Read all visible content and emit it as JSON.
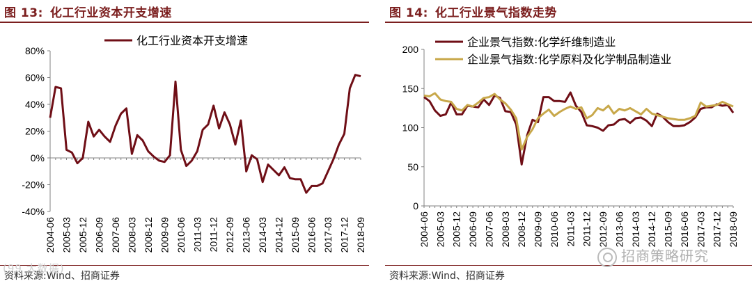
{
  "left": {
    "fig_label": "图 13:",
    "fig_title": "化工行业资本开支增速",
    "source": "资料来源:Wind、招商证券"
  },
  "right": {
    "fig_label": "图 14:",
    "fig_title": "化工行业景气指数走势",
    "source": "资料来源:Wind、招商证券"
  },
  "watermarks": {
    "left": "(99 大数据)",
    "right": "招商策略研究"
  },
  "colors": {
    "title": "#7b1e1e",
    "series_dark": "#6f0e16",
    "series_gold": "#c8a84a",
    "axis": "#808080"
  },
  "chart_data": [
    {
      "type": "line",
      "yticks": [
        "-40%",
        "-20%",
        "0%",
        "20%",
        "40%",
        "60%",
        "80%"
      ],
      "ylim": [
        -40,
        80
      ],
      "x_tick_labels": [
        "2004-06",
        "2005-03",
        "2005-12",
        "2006-09",
        "2007-06",
        "2008-03",
        "2008-12",
        "2009-09",
        "2010-06",
        "2011-03",
        "2011-12",
        "2012-09",
        "2013-06",
        "2014-03",
        "2014-12",
        "2015-09",
        "2016-06",
        "2017-03",
        "2017-12",
        "2018-09"
      ],
      "x_range": [
        2004.417,
        2018.667
      ],
      "legend_position": "top-center",
      "series": [
        {
          "name": "化工行业资本开支增速",
          "color": "#6f0e16",
          "points": [
            [
              2004.417,
              30
            ],
            [
              2004.667,
              53
            ],
            [
              2004.917,
              52
            ],
            [
              2005.167,
              6
            ],
            [
              2005.417,
              4
            ],
            [
              2005.667,
              -4
            ],
            [
              2005.917,
              0
            ],
            [
              2006.167,
              27
            ],
            [
              2006.417,
              16
            ],
            [
              2006.667,
              21
            ],
            [
              2006.917,
              16
            ],
            [
              2007.167,
              12
            ],
            [
              2007.417,
              24
            ],
            [
              2007.667,
              33
            ],
            [
              2007.917,
              37
            ],
            [
              2008.167,
              3
            ],
            [
              2008.417,
              17
            ],
            [
              2008.667,
              13
            ],
            [
              2008.917,
              5
            ],
            [
              2009.167,
              1
            ],
            [
              2009.417,
              -2
            ],
            [
              2009.667,
              -3
            ],
            [
              2009.917,
              2
            ],
            [
              2010.167,
              57
            ],
            [
              2010.417,
              6
            ],
            [
              2010.667,
              -6
            ],
            [
              2010.917,
              -2
            ],
            [
              2011.167,
              5
            ],
            [
              2011.417,
              21
            ],
            [
              2011.667,
              25
            ],
            [
              2011.917,
              39
            ],
            [
              2012.167,
              22
            ],
            [
              2012.417,
              34
            ],
            [
              2012.667,
              25
            ],
            [
              2012.917,
              10
            ],
            [
              2013.167,
              28
            ],
            [
              2013.417,
              -10
            ],
            [
              2013.667,
              2
            ],
            [
              2013.917,
              -1
            ],
            [
              2014.167,
              -18
            ],
            [
              2014.417,
              -5
            ],
            [
              2014.667,
              -9
            ],
            [
              2014.917,
              -13
            ],
            [
              2015.167,
              -7
            ],
            [
              2015.417,
              -15
            ],
            [
              2015.667,
              -16
            ],
            [
              2015.917,
              -16
            ],
            [
              2016.167,
              -26
            ],
            [
              2016.417,
              -21
            ],
            [
              2016.667,
              -21
            ],
            [
              2016.917,
              -19
            ],
            [
              2017.167,
              -10
            ],
            [
              2017.417,
              -1
            ],
            [
              2017.667,
              10
            ],
            [
              2017.917,
              18
            ],
            [
              2018.167,
              52
            ],
            [
              2018.417,
              62
            ],
            [
              2018.667,
              61
            ]
          ]
        }
      ]
    },
    {
      "type": "line",
      "yticks": [
        "0",
        "50",
        "100",
        "150",
        "200"
      ],
      "ylim": [
        0,
        200
      ],
      "x_tick_labels": [
        "2004-06",
        "2005-03",
        "2005-12",
        "2006-09",
        "2007-06",
        "2008-03",
        "2008-12",
        "2009-09",
        "2010-06",
        "2011-03",
        "2011-12",
        "2012-09",
        "2013-06",
        "2014-03",
        "2014-12",
        "2015-09",
        "2016-06",
        "2017-03",
        "2017-12",
        "2018-09"
      ],
      "x_range": [
        2004.417,
        2018.667
      ],
      "legend_position": "top-left",
      "series": [
        {
          "name": "企业景气指数:化学纤维制造业",
          "color": "#6f0e16",
          "points": [
            [
              2004.417,
              139
            ],
            [
              2004.667,
              134
            ],
            [
              2004.917,
              122
            ],
            [
              2005.167,
              115
            ],
            [
              2005.417,
              117
            ],
            [
              2005.667,
              132
            ],
            [
              2005.917,
              117
            ],
            [
              2006.167,
              117
            ],
            [
              2006.417,
              128
            ],
            [
              2006.667,
              127
            ],
            [
              2006.917,
              126
            ],
            [
              2007.167,
              136
            ],
            [
              2007.417,
              129
            ],
            [
              2007.667,
              141
            ],
            [
              2007.917,
              138
            ],
            [
              2008.167,
              121
            ],
            [
              2008.417,
              120
            ],
            [
              2008.667,
              104
            ],
            [
              2008.917,
              53
            ],
            [
              2009.167,
              90
            ],
            [
              2009.417,
              110
            ],
            [
              2009.667,
              107
            ],
            [
              2009.917,
              139
            ],
            [
              2010.167,
              139
            ],
            [
              2010.417,
              134
            ],
            [
              2010.667,
              134
            ],
            [
              2010.917,
              133
            ],
            [
              2011.167,
              145
            ],
            [
              2011.417,
              128
            ],
            [
              2011.667,
              120
            ],
            [
              2011.917,
              103
            ],
            [
              2012.167,
              102
            ],
            [
              2012.417,
              100
            ],
            [
              2012.667,
              96
            ],
            [
              2012.917,
              103
            ],
            [
              2013.167,
              104
            ],
            [
              2013.417,
              110
            ],
            [
              2013.667,
              111
            ],
            [
              2013.917,
              106
            ],
            [
              2014.167,
              112
            ],
            [
              2014.417,
              113
            ],
            [
              2014.667,
              109
            ],
            [
              2014.917,
              102
            ],
            [
              2015.167,
              118
            ],
            [
              2015.417,
              114
            ],
            [
              2015.667,
              107
            ],
            [
              2015.917,
              102
            ],
            [
              2016.167,
              102
            ],
            [
              2016.417,
              103
            ],
            [
              2016.667,
              107
            ],
            [
              2016.917,
              113
            ],
            [
              2017.167,
              124
            ],
            [
              2017.417,
              126
            ],
            [
              2017.667,
              126
            ],
            [
              2017.917,
              130
            ],
            [
              2018.167,
              128
            ],
            [
              2018.417,
              129
            ],
            [
              2018.667,
              119
            ]
          ]
        },
        {
          "name": "企业景气指数:化学原料及化学制品制造业",
          "color": "#c8a84a",
          "points": [
            [
              2004.417,
              141
            ],
            [
              2004.667,
              140
            ],
            [
              2004.917,
              144
            ],
            [
              2005.167,
              136
            ],
            [
              2005.417,
              134
            ],
            [
              2005.667,
              133
            ],
            [
              2005.917,
              124
            ],
            [
              2006.167,
              122
            ],
            [
              2006.417,
              129
            ],
            [
              2006.667,
              127
            ],
            [
              2006.917,
              132
            ],
            [
              2007.167,
              138
            ],
            [
              2007.417,
              139
            ],
            [
              2007.667,
              143
            ],
            [
              2007.917,
              136
            ],
            [
              2008.167,
              131
            ],
            [
              2008.417,
              123
            ],
            [
              2008.667,
              112
            ],
            [
              2008.917,
              72
            ],
            [
              2009.167,
              88
            ],
            [
              2009.417,
              98
            ],
            [
              2009.667,
              112
            ],
            [
              2009.917,
              118
            ],
            [
              2010.167,
              123
            ],
            [
              2010.417,
              115
            ],
            [
              2010.667,
              120
            ],
            [
              2010.917,
              124
            ],
            [
              2011.167,
              127
            ],
            [
              2011.417,
              124
            ],
            [
              2011.667,
              126
            ],
            [
              2011.917,
              112
            ],
            [
              2012.167,
              116
            ],
            [
              2012.417,
              125
            ],
            [
              2012.667,
              122
            ],
            [
              2012.917,
              128
            ],
            [
              2013.167,
              118
            ],
            [
              2013.417,
              124
            ],
            [
              2013.667,
              122
            ],
            [
              2013.917,
              125
            ],
            [
              2014.167,
              121
            ],
            [
              2014.417,
              117
            ],
            [
              2014.667,
              124
            ],
            [
              2014.917,
              118
            ],
            [
              2015.167,
              116
            ],
            [
              2015.417,
              114
            ],
            [
              2015.667,
              112
            ],
            [
              2015.917,
              111
            ],
            [
              2016.167,
              110
            ],
            [
              2016.417,
              110
            ],
            [
              2016.667,
              112
            ],
            [
              2016.917,
              115
            ],
            [
              2017.167,
              132
            ],
            [
              2017.417,
              127
            ],
            [
              2017.667,
              128
            ],
            [
              2017.917,
              129
            ],
            [
              2018.167,
              133
            ],
            [
              2018.417,
              130
            ],
            [
              2018.667,
              127
            ]
          ]
        }
      ]
    }
  ]
}
